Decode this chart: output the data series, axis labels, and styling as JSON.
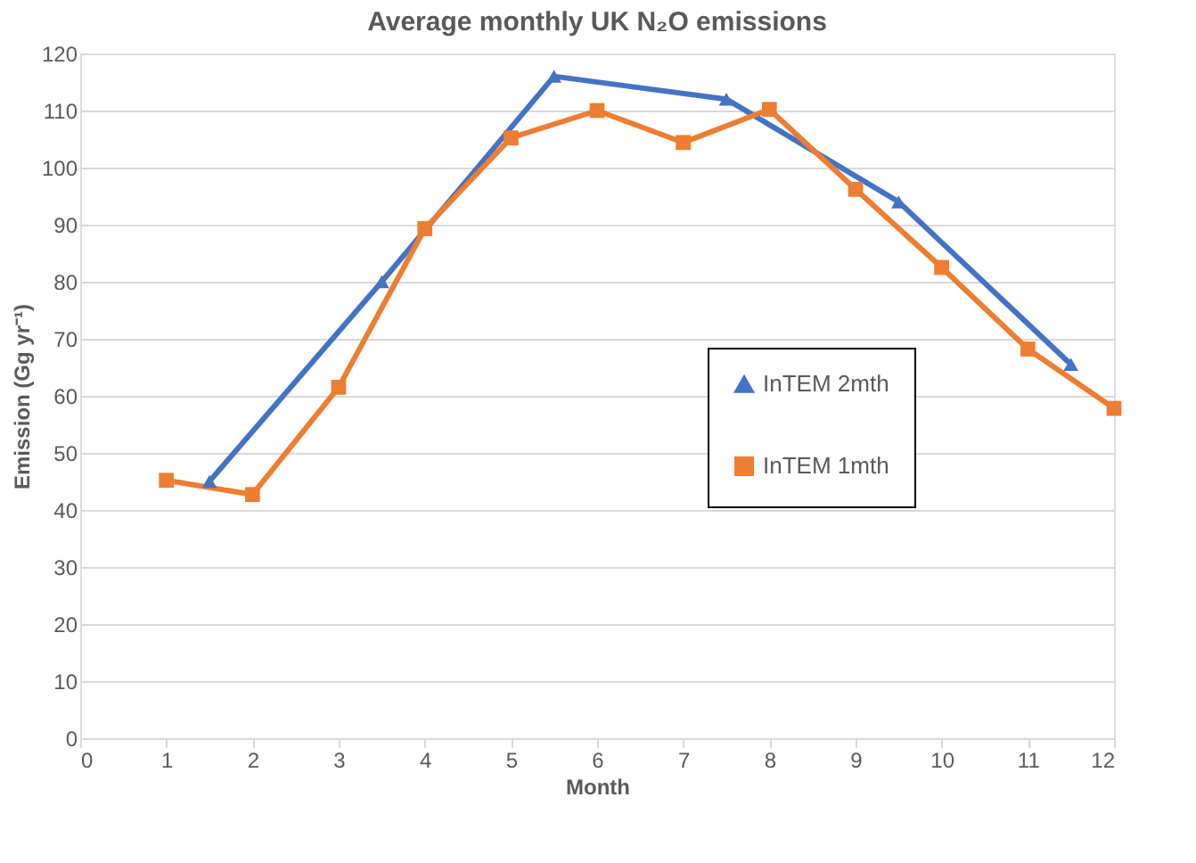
{
  "chart_data": {
    "type": "line",
    "title": "Average monthly UK N₂O emissions",
    "xlabel": "Month",
    "ylabel": "Emission (Gg yr⁻¹)",
    "xlim": [
      0,
      12
    ],
    "xticks": [
      0,
      1,
      2,
      3,
      4,
      5,
      6,
      7,
      8,
      9,
      10,
      11,
      12
    ],
    "ylim": [
      0,
      120
    ],
    "yticks": [
      0,
      10,
      20,
      30,
      40,
      50,
      60,
      70,
      80,
      90,
      100,
      110,
      120
    ],
    "grid": "y",
    "legend": "right",
    "line_style": "solid",
    "series": [
      {
        "name": "InTEM 2mth",
        "color": "#4472c4",
        "marker": "triangle",
        "x": [
          1.5,
          3.5,
          5.5,
          7.5,
          9.5,
          11.5
        ],
        "values": [
          45,
          80,
          116,
          112,
          94,
          65.5
        ]
      },
      {
        "name": "InTEM 1mth",
        "color": "#ed7d31",
        "marker": "square",
        "x": [
          1,
          2,
          3,
          4,
          5,
          6,
          7,
          8,
          9,
          10,
          11,
          12
        ],
        "values": [
          45.2,
          42.7,
          61.5,
          89.3,
          105.2,
          110,
          104.4,
          110.2,
          96.2,
          82.5,
          68.2,
          57.8
        ]
      }
    ]
  }
}
